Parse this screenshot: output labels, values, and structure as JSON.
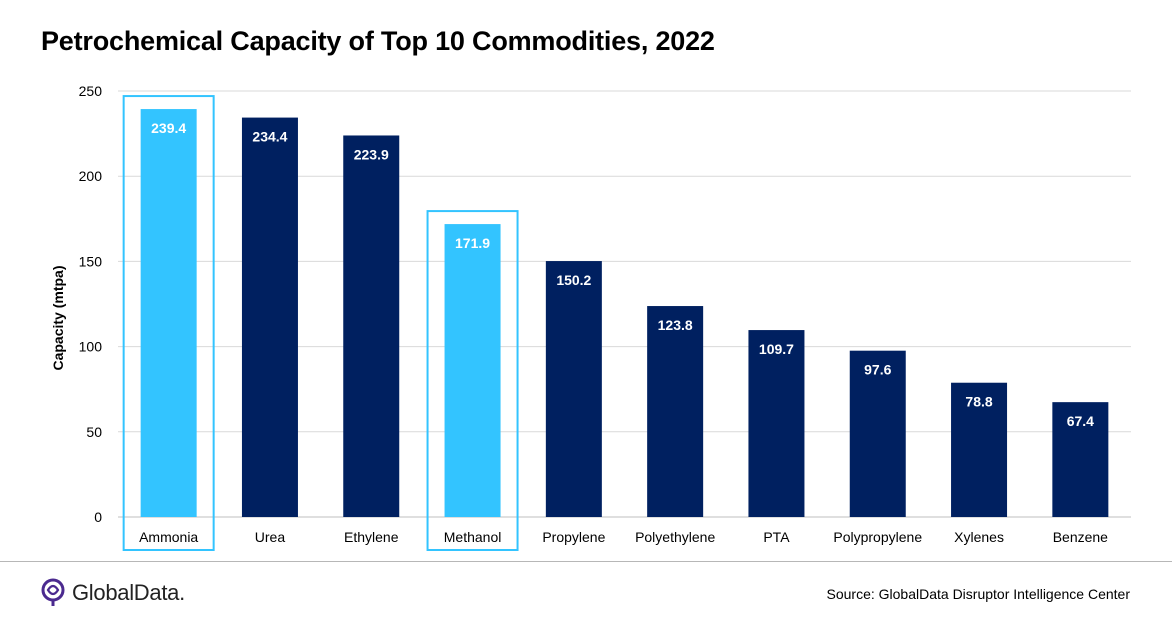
{
  "title": "Petrochemical Capacity of Top 10 Commodities, 2022",
  "source": "Source:  GlobalData Disruptor Intelligence Center",
  "logo_text": "GlobalData.",
  "colors": {
    "dark_bar": "#002060",
    "highlight_bar": "#33c4ff",
    "highlight_box": "#33c4ff",
    "gridline": "#d9d9d9",
    "logo_purple": "#4b2a8f"
  },
  "chart_data": {
    "type": "bar",
    "ylabel": "Capacity (mtpa)",
    "xlabel": "",
    "ylim": [
      0,
      250
    ],
    "yticks": [
      0,
      50,
      100,
      150,
      200,
      250
    ],
    "grid": true,
    "categories": [
      "Ammonia",
      "Urea",
      "Ethylene",
      "Methanol",
      "Propylene",
      "Polyethylene",
      "PTA",
      "Polypropylene",
      "Xylenes",
      "Benzene"
    ],
    "values": [
      239.4,
      234.4,
      223.9,
      171.9,
      150.2,
      123.8,
      109.7,
      97.6,
      78.8,
      67.4
    ],
    "data_labels": [
      "239.4",
      "234.4",
      "223.9",
      "171.9",
      "150.2",
      "123.8",
      "109.7",
      "97.6",
      "78.8",
      "67.4"
    ],
    "highlighted": [
      "Ammonia",
      "Methanol"
    ]
  }
}
